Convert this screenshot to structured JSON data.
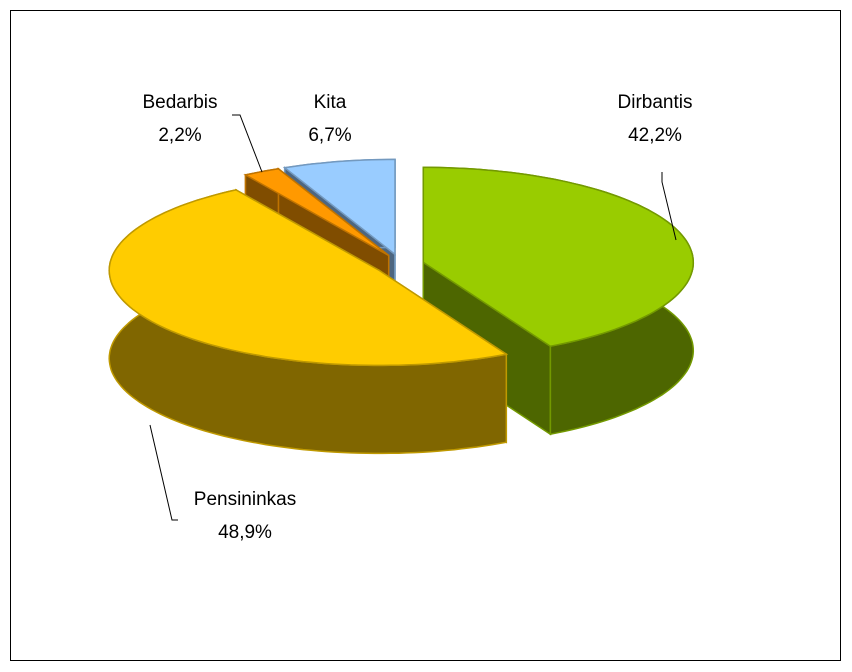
{
  "chart_data": {
    "type": "pie",
    "categories": [
      "Dirbantis",
      "Pensininkas",
      "Bedarbis",
      "Kita"
    ],
    "values": [
      42.2,
      48.9,
      2.2,
      6.7
    ],
    "value_labels": [
      "42,2%",
      "48,9%",
      "2,2%",
      "6,7%"
    ],
    "colors": [
      "#99cc00",
      "#ffcc00",
      "#ff9900",
      "#99ccff"
    ]
  }
}
